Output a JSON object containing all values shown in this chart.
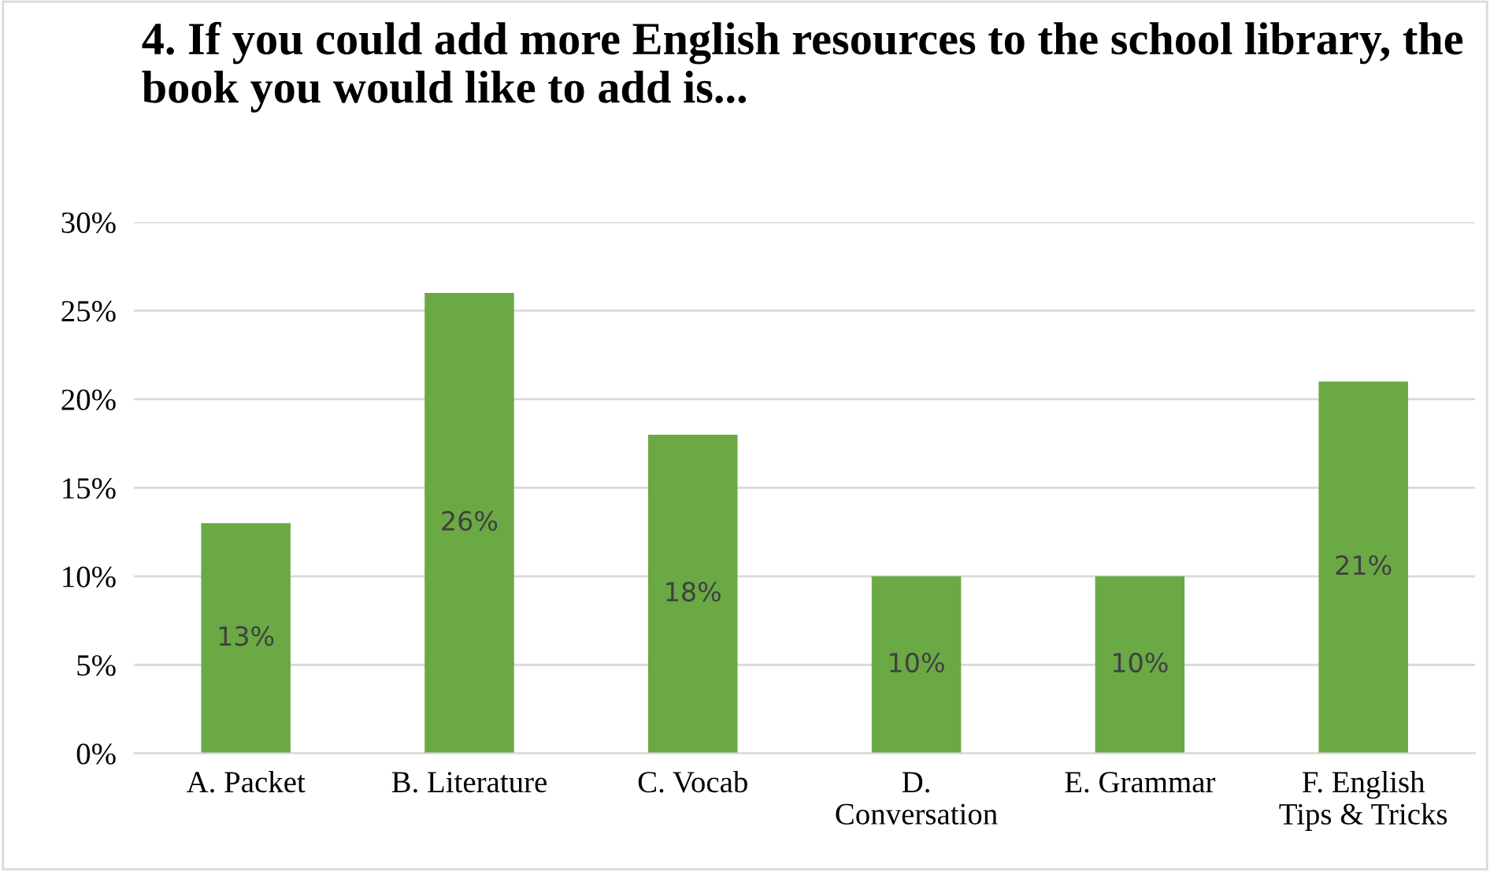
{
  "chart_data": {
    "type": "bar",
    "title": "4. If you could add more English resources to the school library, the book you would like to add is...",
    "categories": [
      "A. Packet",
      "B. Literature",
      "C. Vocab",
      "D.\nConversation",
      "E. Grammar",
      "F. English\nTips & Tricks"
    ],
    "values": [
      13,
      26,
      18,
      10,
      10,
      21
    ],
    "value_labels": [
      "13%",
      "26%",
      "18%",
      "10%",
      "10%",
      "21%"
    ],
    "color": "#6aa944",
    "ylim": [
      0,
      30
    ],
    "yticks": [
      {
        "value": 0,
        "label": "0%"
      },
      {
        "value": 5,
        "label": "5%"
      },
      {
        "value": 10,
        "label": "10%"
      },
      {
        "value": 15,
        "label": "15%"
      },
      {
        "value": 20,
        "label": "20%"
      },
      {
        "value": 25,
        "label": "25%"
      },
      {
        "value": 30,
        "label": "30%"
      }
    ],
    "grid": "y",
    "legend": false
  }
}
